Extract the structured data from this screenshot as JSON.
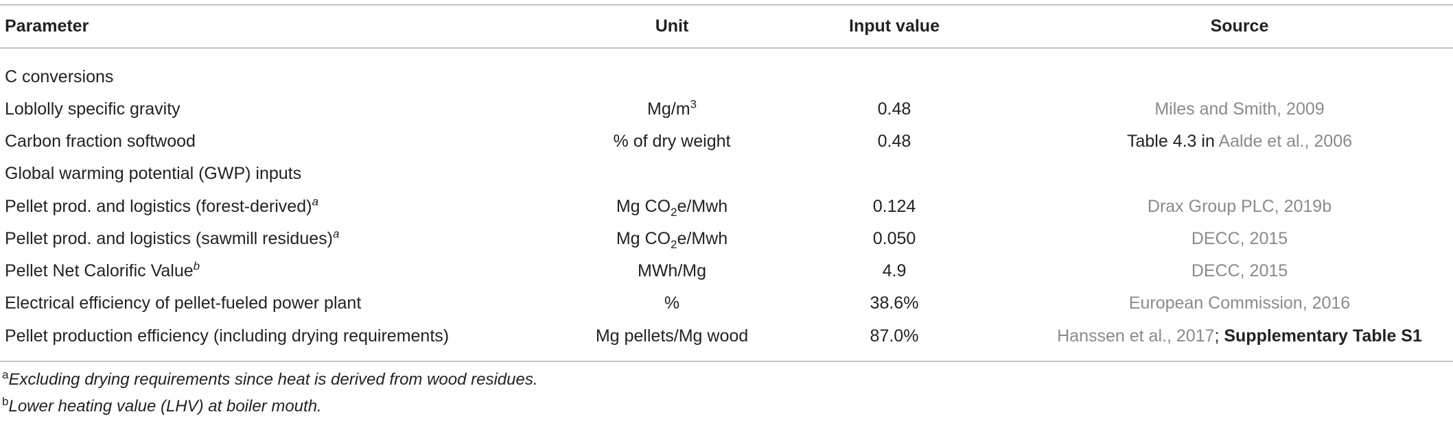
{
  "table": {
    "header": [
      "Parameter",
      "Unit",
      "Input value",
      "Source"
    ],
    "rows": [
      {
        "parameter": "C conversions"
      },
      {
        "parameter": "Loblolly specific gravity",
        "unit": [
          "Mg/m",
          "3"
        ],
        "value": "0.48",
        "source": [
          "Miles and Smith, 2009"
        ]
      },
      {
        "parameter": "Carbon fraction softwood",
        "unit": [
          "% of dry weight"
        ],
        "value": "0.48",
        "source": [
          "Table 4.3 in ",
          "Aalde et al., 2006"
        ]
      },
      {
        "parameter": "Global warming potential (GWP) inputs"
      },
      {
        "parameter": [
          "Pellet prod. and logistics (forest-derived)",
          "a"
        ],
        "unit": [
          "Mg CO",
          "2",
          "e/Mwh"
        ],
        "value": "0.124",
        "source": [
          "Drax Group PLC, 2019b"
        ]
      },
      {
        "parameter": [
          "Pellet prod. and logistics (sawmill residues)",
          "a"
        ],
        "unit": [
          "Mg CO",
          "2",
          "e/Mwh"
        ],
        "value": "0.050",
        "source": [
          "DECC, 2015"
        ]
      },
      {
        "parameter": [
          "Pellet Net Calorific Value",
          "b"
        ],
        "unit": [
          "MWh/Mg"
        ],
        "value": "4.9",
        "source": [
          "DECC, 2015"
        ]
      },
      {
        "parameter": "Electrical efficiency of pellet-fueled power plant",
        "unit": [
          "%"
        ],
        "value": "38.6%",
        "source": [
          "European Commission, 2016"
        ]
      },
      {
        "parameter": "Pellet production efficiency (including drying requirements)",
        "unit": [
          "Mg pellets/Mg wood"
        ],
        "value": "87.0%",
        "source": [
          "Hanssen et al., 2017",
          "; ",
          "Supplementary Table S1"
        ]
      }
    ]
  },
  "footnotes": [
    [
      "a",
      "Excluding drying requirements since heat is derived from wood residues."
    ],
    [
      "b",
      "Lower heating value (LHV) at boiler mouth."
    ]
  ]
}
